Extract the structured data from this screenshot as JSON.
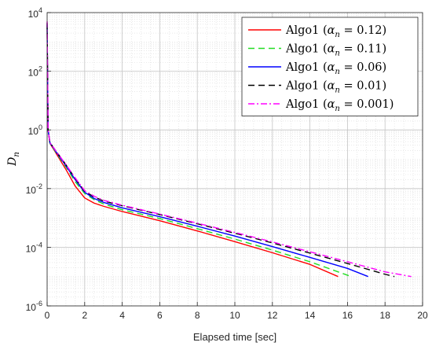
{
  "chart_data": {
    "type": "line",
    "xlabel": "Elapsed time [sec]",
    "ylabel": "D_n",
    "ylabel_display": {
      "main": "D",
      "sub": "n"
    },
    "x_scale": "linear",
    "y_scale": "log",
    "xlim": [
      0,
      20
    ],
    "ylim": [
      1e-06,
      10000.0
    ],
    "x_ticks": [
      0,
      2,
      4,
      6,
      8,
      10,
      12,
      14,
      16,
      18,
      20
    ],
    "y_ticks": [
      {
        "value": 10000.0,
        "base": "10",
        "exp": "4"
      },
      {
        "value": 100.0,
        "base": "10",
        "exp": "2"
      },
      {
        "value": 1,
        "base": "10",
        "exp": "0"
      },
      {
        "value": 0.01,
        "base": "10",
        "exp": "-2"
      },
      {
        "value": 0.0001,
        "base": "10",
        "exp": "-4"
      },
      {
        "value": 1e-06,
        "base": "10",
        "exp": "-6"
      }
    ],
    "grid": true,
    "minor_grid": true,
    "legend_position": "top-right",
    "series": [
      {
        "name": "Algo1 (α_n = 0.12)",
        "legend": {
          "prefix": "Algo1 (",
          "alpha": "α",
          "sub": "n",
          "suffix": " = 0.12)"
        },
        "color": "#ff0000",
        "dash": "",
        "points": [
          [
            0,
            3000
          ],
          [
            0.05,
            1
          ],
          [
            0.15,
            0.35
          ],
          [
            0.5,
            0.15
          ],
          [
            1,
            0.045
          ],
          [
            1.5,
            0.012
          ],
          [
            2,
            0.0048
          ],
          [
            2.5,
            0.0032
          ],
          [
            3,
            0.0025
          ],
          [
            4,
            0.00165
          ],
          [
            6,
            0.0008
          ],
          [
            8,
            0.00036
          ],
          [
            10,
            0.000155
          ],
          [
            12,
            6.5e-05
          ],
          [
            14,
            2.6e-05
          ],
          [
            15.5,
            1e-05
          ]
        ]
      },
      {
        "name": "Algo1 (α_n = 0.11)",
        "legend": {
          "prefix": "Algo1 (",
          "alpha": "α",
          "sub": "n",
          "suffix": " = 0.11)"
        },
        "color": "#22dd22",
        "dash": "8,5",
        "points": [
          [
            0,
            3500
          ],
          [
            0.05,
            1
          ],
          [
            0.15,
            0.35
          ],
          [
            0.5,
            0.16
          ],
          [
            1,
            0.055
          ],
          [
            1.5,
            0.017
          ],
          [
            2,
            0.0068
          ],
          [
            2.5,
            0.0042
          ],
          [
            3,
            0.003
          ],
          [
            4,
            0.0019
          ],
          [
            6,
            0.00095
          ],
          [
            8,
            0.00043
          ],
          [
            10,
            0.00019
          ],
          [
            12,
            8e-05
          ],
          [
            14,
            3.2e-05
          ],
          [
            16.2,
            1e-05
          ]
        ]
      },
      {
        "name": "Algo1 (α_n = 0.06)",
        "legend": {
          "prefix": "Algo1 (",
          "alpha": "α",
          "sub": "n",
          "suffix": " = 0.06)"
        },
        "color": "#0000ff",
        "dash": "",
        "points": [
          [
            0,
            4000
          ],
          [
            0.05,
            1
          ],
          [
            0.15,
            0.36
          ],
          [
            0.5,
            0.17
          ],
          [
            1,
            0.06
          ],
          [
            1.5,
            0.02
          ],
          [
            2,
            0.0075
          ],
          [
            2.5,
            0.0046
          ],
          [
            3,
            0.0034
          ],
          [
            4,
            0.0022
          ],
          [
            6,
            0.0011
          ],
          [
            8,
            0.00052
          ],
          [
            10,
            0.00024
          ],
          [
            12,
            0.000105
          ],
          [
            14,
            4.5e-05
          ],
          [
            16,
            1.9e-05
          ],
          [
            17.1,
            1e-05
          ]
        ]
      },
      {
        "name": "Algo1 (α_n = 0.01)",
        "legend": {
          "prefix": "Algo1 (",
          "alpha": "α",
          "sub": "n",
          "suffix": " = 0.01)"
        },
        "color": "#000000",
        "dash": "8,5",
        "points": [
          [
            0,
            4500
          ],
          [
            0.05,
            1
          ],
          [
            0.15,
            0.37
          ],
          [
            0.5,
            0.18
          ],
          [
            1,
            0.065
          ],
          [
            1.5,
            0.022
          ],
          [
            2,
            0.008
          ],
          [
            2.5,
            0.0052
          ],
          [
            3,
            0.0038
          ],
          [
            4,
            0.0026
          ],
          [
            6,
            0.0013
          ],
          [
            8,
            0.00063
          ],
          [
            10,
            0.0003
          ],
          [
            12,
            0.00014
          ],
          [
            14,
            6.3e-05
          ],
          [
            16,
            2.8e-05
          ],
          [
            18,
            1.2e-05
          ],
          [
            18.5,
            1e-05
          ]
        ]
      },
      {
        "name": "Algo1 (α_n = 0.001)",
        "legend": {
          "prefix": "Algo1 (",
          "alpha": "α",
          "sub": "n",
          "suffix": " = 0.001)"
        },
        "color": "#ff00ff",
        "dash": "8,3,2,3",
        "points": [
          [
            0,
            5000
          ],
          [
            0.05,
            1
          ],
          [
            0.15,
            0.37
          ],
          [
            0.5,
            0.18
          ],
          [
            1,
            0.066
          ],
          [
            1.5,
            0.023
          ],
          [
            2,
            0.0085
          ],
          [
            2.5,
            0.0055
          ],
          [
            3,
            0.004
          ],
          [
            4,
            0.0027
          ],
          [
            6,
            0.00135
          ],
          [
            8,
            0.00066
          ],
          [
            10,
            0.00032
          ],
          [
            12,
            0.000152
          ],
          [
            14,
            7e-05
          ],
          [
            16,
            3.2e-05
          ],
          [
            18,
            1.45e-05
          ],
          [
            19.4,
            1e-05
          ]
        ]
      }
    ]
  }
}
